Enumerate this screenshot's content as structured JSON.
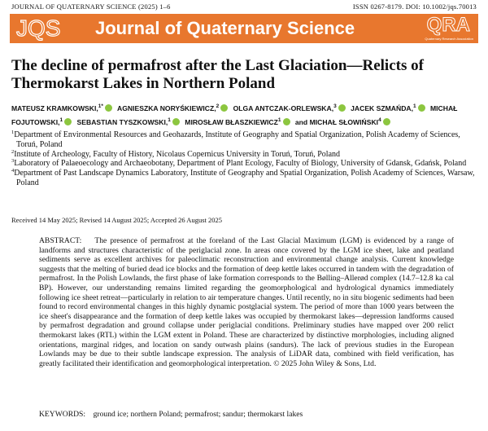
{
  "header": {
    "journal_line": "JOURNAL OF QUATERNARY SCIENCE (2025) 1–6",
    "issn_doi": "ISSN 0267-8179. DOI: 10.1002/jqs.70013",
    "logo": "JQS",
    "banner_title": "Journal of Quaternary Science",
    "qra_logo": "QRA",
    "qra_subtitle": "Quaternary Research Association"
  },
  "title": "The decline of permafrost after the Last Glaciation—Relicts of Thermokarst Lakes in Northern Poland",
  "authors": [
    {
      "name": "MATEUSZ KRAMKOWSKI,",
      "sup": "1*"
    },
    {
      "name": "AGNIESZKA NORYŚKIEWICZ,",
      "sup": "2"
    },
    {
      "name": "OLGA ANTCZAK-ORLEWSKA,",
      "sup": "3"
    },
    {
      "name": "JACEK SZMAŃDA,",
      "sup": "1"
    },
    {
      "name": "MICHAŁ FOJUTOWSKI,",
      "sup": "1"
    },
    {
      "name": "SEBASTIAN TYSZKOWSKI,",
      "sup": "1"
    },
    {
      "name": "MIROSŁAW BŁASZKIEWICZ",
      "sup": "1"
    },
    {
      "name": "MICHAŁ SŁOWIŃSKI",
      "sup": "4"
    }
  ],
  "authors_conjunction": "and",
  "affiliations": [
    {
      "num": "1",
      "text": "Department of Environmental Resources and Geohazards, Institute of Geography and Spatial Organization, Polish Academy of Sciences, Toruń, Poland"
    },
    {
      "num": "2",
      "text": "Institute of Archeology, Faculty of History, Nicolaus Copernicus University in Toruń, Toruń, Poland"
    },
    {
      "num": "3",
      "text": "Laboratory of Palaeoecology and Archaeobotany, Department of Plant Ecology, Faculty of Biology, University of Gdansk, Gdańsk, Poland"
    },
    {
      "num": "4",
      "text": "Department of Past Landscape Dynamics Laboratory, Institute of Geography and Spatial Organization, Polish Academy of Sciences, Warsaw, Poland"
    }
  ],
  "dates": "Received 14 May 2025; Revised 14 August 2025; Accepted 26 August 2025",
  "abstract": {
    "label": "ABSTRACT:",
    "text": "The presence of permafrost at the foreland of the Last Glacial Maximum (LGM) is evidenced by a range of landforms and structures characteristic of the periglacial zone. In areas once covered by the LGM ice sheet, lake and peatland sediments serve as excellent archives for paleoclimatic reconstruction and environmental change analysis. Current knowledge suggests that the melting of buried dead ice blocks and the formation of deep kettle lakes occurred in tandem with the degradation of permafrost. In the Polish Lowlands, the first phase of lake formation corresponds to the Bølling–Allerød complex (14.7–12.8 ka cal BP). However, our understanding remains limited regarding the geomorphological and hydrological dynamics immediately following ice sheet retreat—particularly in relation to air temperature changes. Until recently, no in situ biogenic sediments had been found to record environmental changes in this highly dynamic postglacial system. The period of more than 1000 years between the ice sheet's disappearance and the formation of deep kettle lakes was occupied by thermokarst lakes—depression landforms caused by permafrost degradation and ground collapse under periglacial conditions. Preliminary studies have mapped over 200 relict thermokarst lakes (RTL) within the LGM extent in Poland. These are characterized by distinctive morphologies, including aligned orientations, marginal ridges, and location on sandy outwash plains (sandurs). The lack of previous studies in the European Lowlands may be due to their subtle landscape expression. The analysis of LiDAR data, combined with field verification, has greatly facilitated their identification and geomorphological interpretation. © 2025 John Wiley & Sons, Ltd."
  },
  "keywords": {
    "label": "KEYWORDS:",
    "text": "ground ice; northern Poland; permafrost; sandur; thermokarst lakes"
  }
}
